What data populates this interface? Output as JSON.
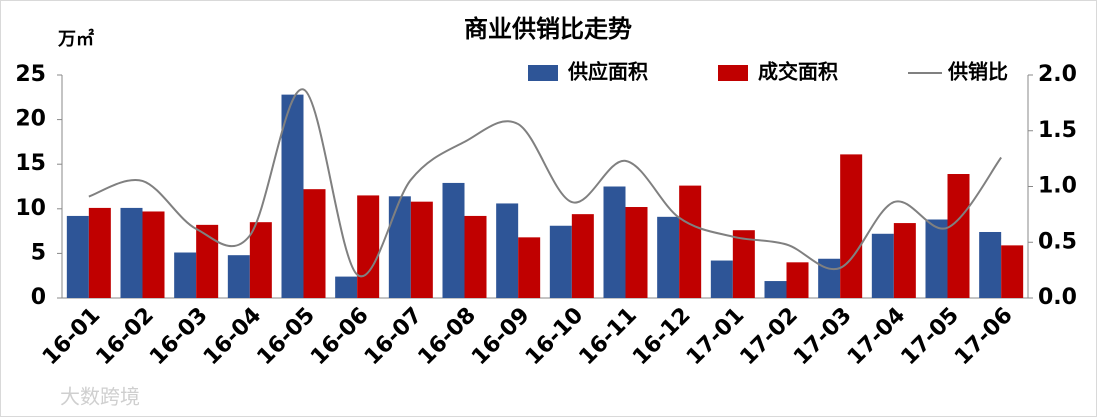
{
  "chart_data": {
    "type": "bar-line",
    "title": "商业供销比走势",
    "y_label": "万㎡",
    "watermark": "大数跨境",
    "categories": [
      "16-01",
      "16-02",
      "16-03",
      "16-04",
      "16-05",
      "16-06",
      "16-07",
      "16-08",
      "16-09",
      "16-10",
      "16-11",
      "16-12",
      "17-01",
      "17-02",
      "17-03",
      "17-04",
      "17-05",
      "17-06"
    ],
    "series": [
      {
        "name": "供应面积",
        "type": "bar",
        "color": "#2e5597",
        "values": [
          9.2,
          10.1,
          5.1,
          4.8,
          22.8,
          2.4,
          11.4,
          12.9,
          10.6,
          8.1,
          12.5,
          9.1,
          4.2,
          1.9,
          4.4,
          7.2,
          8.8,
          7.4
        ]
      },
      {
        "name": "成交面积",
        "type": "bar",
        "color": "#c00000",
        "values": [
          10.1,
          9.7,
          8.2,
          8.5,
          12.2,
          11.5,
          10.8,
          9.2,
          6.8,
          9.4,
          10.2,
          12.6,
          7.6,
          4.0,
          16.1,
          8.4,
          13.9,
          5.9
        ]
      },
      {
        "name": "供销比",
        "type": "line",
        "axis": "y2",
        "color": "#808080",
        "values": [
          0.91,
          1.05,
          0.62,
          0.56,
          1.87,
          0.21,
          1.06,
          1.4,
          1.56,
          0.86,
          1.23,
          0.72,
          0.55,
          0.48,
          0.27,
          0.86,
          0.63,
          1.26
        ]
      }
    ],
    "ylim": [
      0,
      25
    ],
    "yticks": [
      0,
      5,
      10,
      15,
      20,
      25
    ],
    "y2lim": [
      0,
      2
    ],
    "y2ticks": [
      {
        "value": 0,
        "label": "0.0"
      },
      {
        "value": 0.5,
        "label": "0.5"
      },
      {
        "value": 1,
        "label": "1.0"
      },
      {
        "value": 1.5,
        "label": "1.5"
      },
      {
        "value": 2,
        "label": "2.0"
      }
    ]
  }
}
